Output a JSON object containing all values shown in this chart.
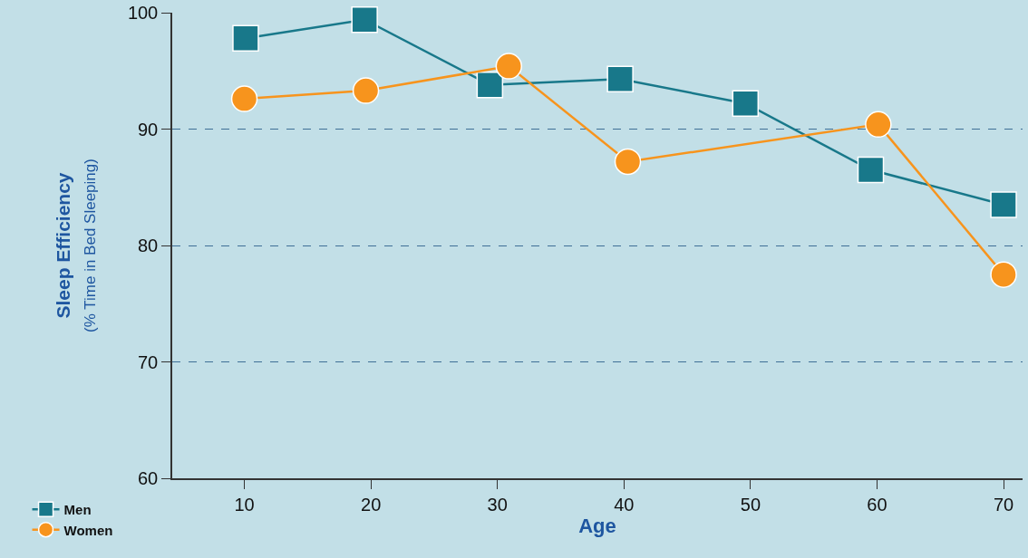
{
  "chart_data": {
    "type": "line",
    "xlabel": "Age",
    "ylabel": "Sleep Efficiency\n(% Time in Bed Sleeping)",
    "xlim": [
      4.3,
      71.5
    ],
    "xticks": [
      10,
      20,
      30,
      40,
      50,
      60,
      70
    ],
    "ylim": [
      60,
      100
    ],
    "yticks": [
      60,
      70,
      80,
      90,
      100
    ],
    "grid": "y",
    "legend": "bottom left",
    "line_style": "solid",
    "series": [
      {
        "name": "Men",
        "color": "#18788a",
        "marker": "square",
        "x": [
          10.1,
          19.5,
          29.4,
          39.7,
          49.6,
          59.5,
          70
        ],
        "values": [
          97.8,
          99.4,
          93.8,
          94.3,
          92.2,
          86.5,
          83.5
        ]
      },
      {
        "name": "Women",
        "color": "#f7941d",
        "marker": "circle",
        "x": [
          10,
          19.6,
          30.9,
          40.3,
          60.1,
          70
        ],
        "values": [
          92.6,
          93.3,
          95.4,
          87.2,
          90.4,
          77.5
        ]
      }
    ]
  }
}
